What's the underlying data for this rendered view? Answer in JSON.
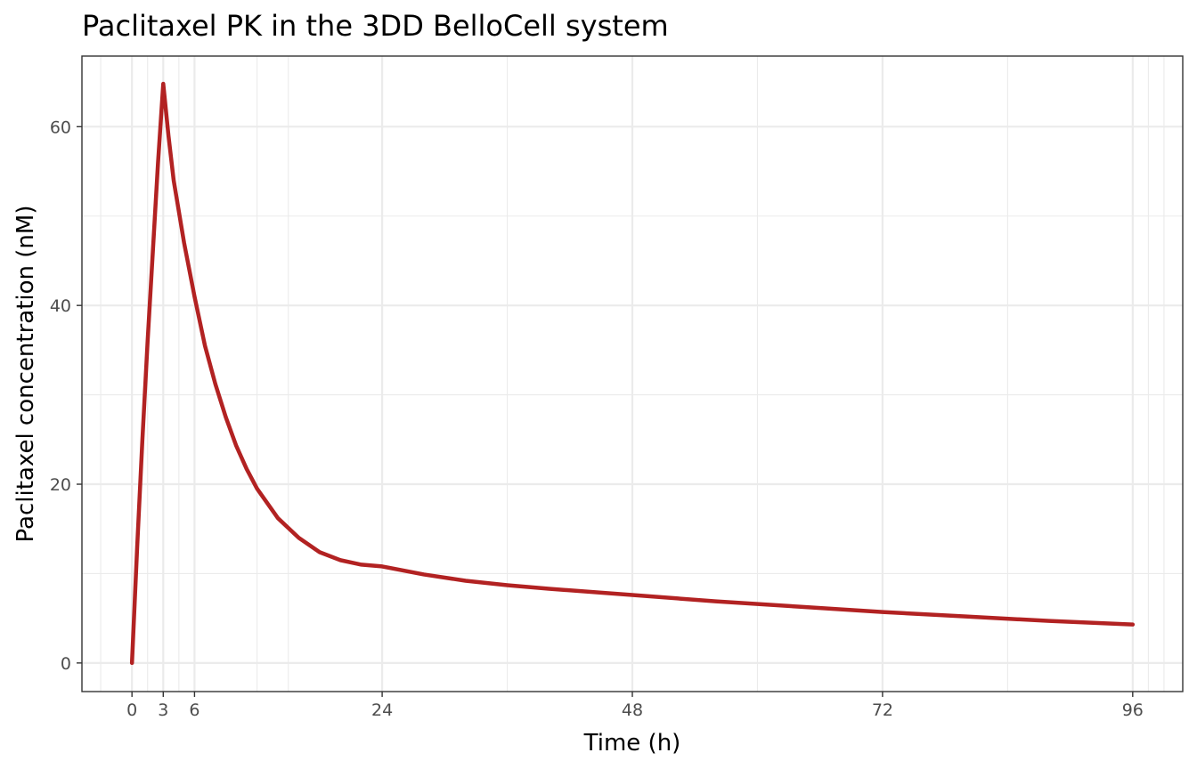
{
  "chart_data": {
    "type": "line",
    "title": "Paclitaxel PK in the 3DD BelloCell system",
    "xlabel": "Time (h)",
    "ylabel": "Paclitaxel concentration (nM)",
    "xlim": [
      -4.8,
      100.8
    ],
    "ylim": [
      -3.2,
      67.9
    ],
    "x_ticks": [
      0,
      3,
      6,
      24,
      48,
      72,
      96
    ],
    "x_tick_labels": [
      "0",
      "3",
      "6",
      "24",
      "48",
      "72",
      "96"
    ],
    "x_minor_grid": [
      -3,
      1.5,
      4.5,
      12,
      15,
      36,
      60,
      84,
      97.5,
      99
    ],
    "y_ticks": [
      0,
      20,
      40,
      60
    ],
    "y_tick_labels": [
      "0",
      "20",
      "40",
      "60"
    ],
    "y_minor_grid": [
      10,
      30,
      50
    ],
    "grid": true,
    "legend": "none",
    "series": [
      {
        "color": "#b22222",
        "x": [
          0,
          0.5,
          1,
          1.5,
          2,
          2.5,
          3,
          3.5,
          4,
          5,
          6,
          7,
          8,
          9,
          10,
          11,
          12,
          14,
          16,
          18,
          20,
          22,
          24,
          28,
          32,
          36,
          40,
          48,
          56,
          64,
          72,
          80,
          88,
          96
        ],
        "y": [
          0,
          13,
          25,
          36,
          46,
          56,
          64.8,
          59,
          54,
          47,
          41,
          35.5,
          31.2,
          27.5,
          24.3,
          21.7,
          19.5,
          16.2,
          14,
          12.4,
          11.5,
          11,
          10.8,
          9.9,
          9.2,
          8.7,
          8.3,
          7.6,
          6.9,
          6.3,
          5.7,
          5.2,
          4.7,
          4.3
        ]
      }
    ]
  }
}
